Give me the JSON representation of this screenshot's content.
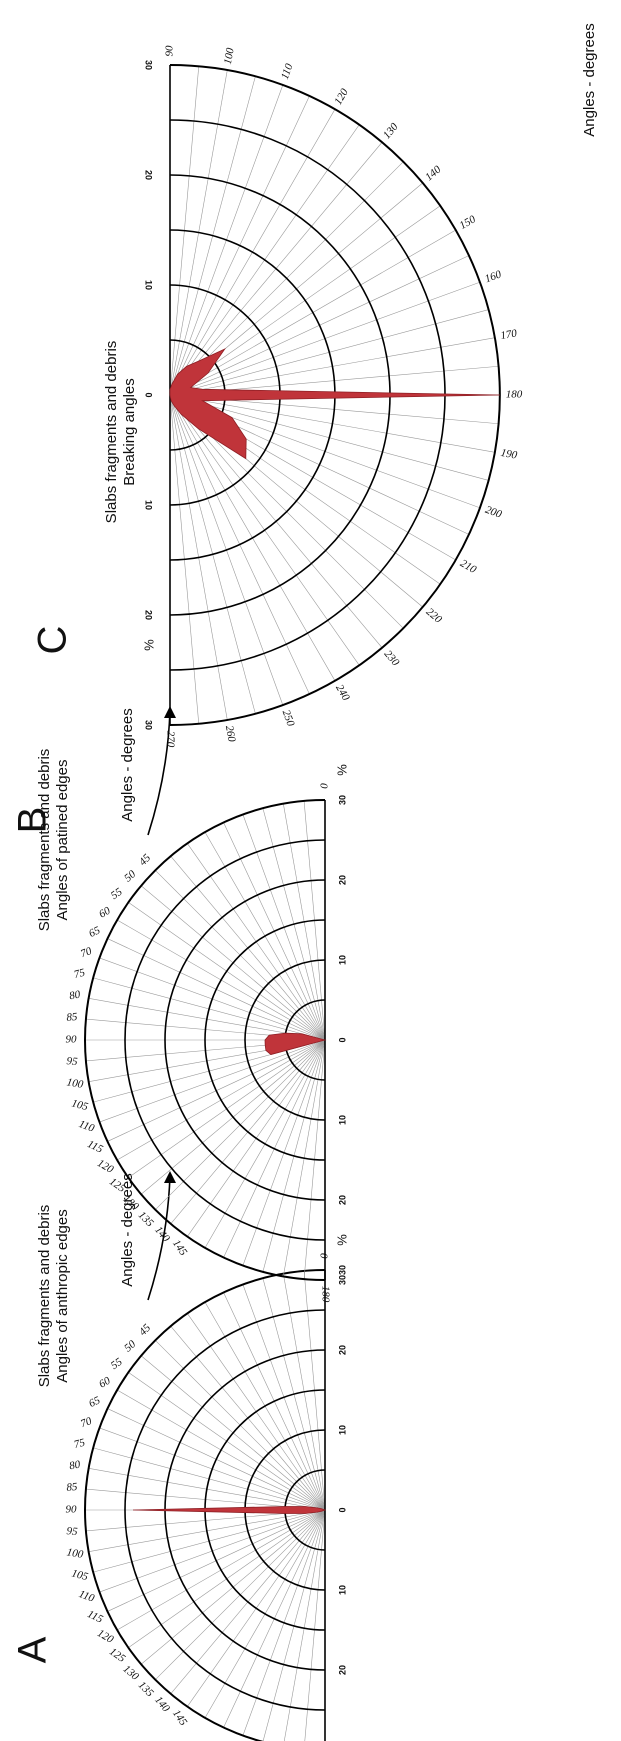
{
  "colors": {
    "rose_fill": "#c0343a",
    "rose_stroke": "#8e1f25",
    "ring": "#000000",
    "spoke": "#9a9a9a"
  },
  "chart_data": [
    {
      "panel": "A",
      "type": "polar-area",
      "title": [
        "Slabs fragments and debris",
        "Angles of anthropic edges"
      ],
      "angle_label": "Angles - degrees",
      "unit_label": "%",
      "radial_ticks": [
        30,
        20,
        10,
        0,
        10,
        20,
        30
      ],
      "radial_max": 30,
      "angle_ticks": [
        0,
        45,
        50,
        55,
        60,
        65,
        70,
        75,
        80,
        85,
        90,
        95,
        100,
        105,
        110,
        115,
        120,
        125,
        130,
        135,
        140,
        145,
        180
      ],
      "angles": [
        45,
        50,
        55,
        60,
        65,
        70,
        75,
        80,
        85,
        90,
        95,
        100,
        105,
        110,
        115,
        120,
        125,
        130,
        135,
        140,
        145
      ],
      "values": [
        0,
        0,
        0,
        0,
        0,
        0.5,
        1,
        2.5,
        5,
        24,
        5,
        2.5,
        1,
        0.5,
        0,
        0,
        0,
        0,
        0,
        0,
        0
      ]
    },
    {
      "panel": "B",
      "type": "polar-area",
      "title": [
        "Slabs fragments and debris",
        "Angles of patined edges"
      ],
      "angle_label": "Angles - degrees",
      "unit_label": "%",
      "radial_ticks": [
        30,
        20,
        10,
        0,
        10,
        20,
        30
      ],
      "radial_max": 30,
      "angle_ticks": [
        0,
        45,
        50,
        55,
        60,
        65,
        70,
        75,
        80,
        85,
        90,
        95,
        100,
        105,
        110,
        115,
        120,
        125,
        130,
        135,
        140,
        145,
        180
      ],
      "angles": [
        45,
        50,
        55,
        60,
        65,
        70,
        75,
        80,
        85,
        90,
        95,
        100,
        105,
        110,
        115,
        120,
        125,
        130,
        135,
        140,
        145
      ],
      "values": [
        0,
        0,
        0,
        0,
        0,
        0,
        3,
        5,
        7,
        7.5,
        7.5,
        7.5,
        7,
        0,
        0,
        0,
        0,
        0,
        0,
        0,
        0
      ]
    },
    {
      "panel": "C",
      "type": "polar-area",
      "title": [
        "Slabs fragments and debris",
        "Breaking angles"
      ],
      "angle_label": "Angles - degrees",
      "unit_label": "%",
      "radial_ticks": [
        30,
        20,
        10,
        0,
        10,
        20,
        30
      ],
      "radial_max": 30,
      "angle_ticks": [
        90,
        100,
        110,
        120,
        130,
        140,
        150,
        160,
        170,
        180,
        190,
        200,
        210,
        220,
        230,
        240,
        250,
        260,
        270
      ],
      "angles": [
        90,
        100,
        110,
        120,
        130,
        140,
        150,
        160,
        170,
        180,
        190,
        200,
        210,
        220,
        230,
        240,
        250,
        260,
        270
      ],
      "values": [
        0.5,
        1,
        2,
        3,
        4,
        6.5,
        4,
        2,
        3,
        30,
        3,
        6,
        8,
        9,
        4,
        2,
        1,
        0.5,
        0
      ]
    }
  ]
}
